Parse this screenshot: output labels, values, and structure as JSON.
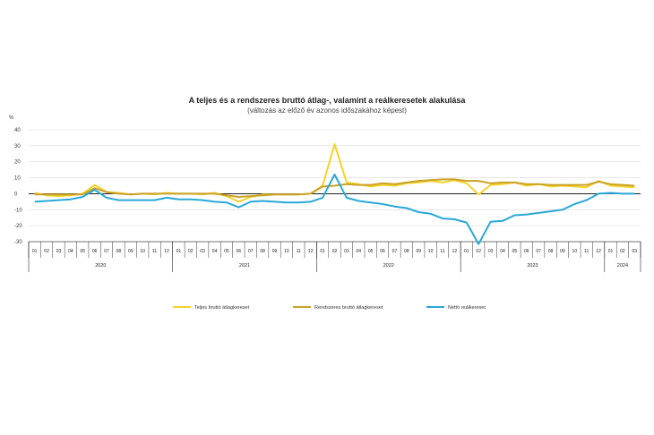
{
  "chart_data": {
    "type": "line",
    "title": "A teljes és a rendszeres bruttó átlag-, valamint a reálkeresetek alakulása",
    "subtitle": "(változás az előző év azonos időszakához képest)",
    "ylabel": "%",
    "ylim": [
      -30,
      40
    ],
    "yticks": [
      40,
      30,
      20,
      10,
      0,
      -10,
      -20,
      -30
    ],
    "ytick_labels": [
      "40",
      "30",
      "20",
      "10",
      "0",
      "-10",
      "-20",
      "-30"
    ],
    "month_labels": [
      "01",
      "02",
      "03",
      "04",
      "05",
      "06",
      "07",
      "08",
      "09",
      "10",
      "11",
      "12",
      "01",
      "02",
      "03",
      "04",
      "05",
      "06",
      "07",
      "08",
      "09",
      "10",
      "11",
      "12",
      "01",
      "02",
      "03",
      "04",
      "05",
      "06",
      "07",
      "08",
      "09",
      "10",
      "11",
      "12",
      "01",
      "02",
      "03",
      "04",
      "05",
      "06",
      "07",
      "08",
      "09",
      "10",
      "11",
      "12",
      "01",
      "02",
      "03"
    ],
    "year_groups": [
      {
        "label": "2020",
        "start": 0,
        "count": 12
      },
      {
        "label": "2021",
        "start": 12,
        "count": 12
      },
      {
        "label": "2022",
        "start": 24,
        "count": 12
      },
      {
        "label": "2023",
        "start": 36,
        "count": 12
      },
      {
        "label": "2024",
        "start": 48,
        "count": 3
      }
    ],
    "series": [
      {
        "name": "Teljes bruttó átlagkereset",
        "color": "#f5d327",
        "values": [
          0.5,
          -1.0,
          -1.5,
          -1.0,
          0.0,
          5.5,
          1.0,
          0.5,
          -0.5,
          0.0,
          -0.5,
          0.5,
          0.0,
          0.0,
          -0.5,
          0.5,
          -1.5,
          -5.0,
          -2.0,
          -0.5,
          -0.5,
          -0.5,
          -0.5,
          0.0,
          5.0,
          31.0,
          7.0,
          6.0,
          4.5,
          5.5,
          5.0,
          6.5,
          7.0,
          8.0,
          7.0,
          8.5,
          6.5,
          -0.5,
          5.5,
          6.0,
          7.0,
          5.0,
          6.0,
          4.5,
          5.0,
          4.5,
          4.0,
          8.0,
          5.0,
          4.5,
          4.0
        ]
      },
      {
        "name": "Rendszeres bruttó átlagkereset",
        "color": "#c9a227",
        "values": [
          -0.5,
          -0.5,
          -0.5,
          -0.5,
          -0.5,
          3.5,
          1.0,
          0.0,
          -0.5,
          0.0,
          0.0,
          0.0,
          0.0,
          0.0,
          0.0,
          0.0,
          -1.0,
          -2.0,
          -1.5,
          -1.0,
          -0.5,
          -0.5,
          -0.5,
          0.0,
          4.5,
          5.0,
          6.0,
          5.5,
          5.5,
          6.5,
          6.0,
          7.0,
          8.0,
          8.5,
          9.0,
          9.0,
          8.0,
          8.0,
          6.5,
          7.0,
          7.0,
          6.0,
          6.0,
          5.5,
          5.5,
          5.5,
          5.5,
          7.5,
          6.0,
          5.5,
          5.0
        ]
      },
      {
        "name": "Nettó reálkereset",
        "color": "#2aa8d8",
        "values": [
          -5.0,
          -4.5,
          -4.0,
          -3.5,
          -2.0,
          2.5,
          -2.5,
          -4.0,
          -4.0,
          -4.0,
          -4.0,
          -2.5,
          -3.5,
          -3.5,
          -4.0,
          -5.0,
          -5.5,
          -8.5,
          -5.0,
          -4.5,
          -5.0,
          -5.5,
          -5.5,
          -5.0,
          -2.5,
          12.0,
          -2.5,
          -4.5,
          -5.5,
          -6.5,
          -8.0,
          -9.0,
          -11.5,
          -12.5,
          -15.5,
          -16.0,
          -18.0,
          -31.5,
          -17.5,
          -17.0,
          -13.5,
          -13.0,
          -12.0,
          -11.0,
          -10.0,
          -6.5,
          -4.0,
          0.0,
          0.5,
          0.0,
          0.0
        ]
      }
    ],
    "legend_position": "bottom"
  }
}
